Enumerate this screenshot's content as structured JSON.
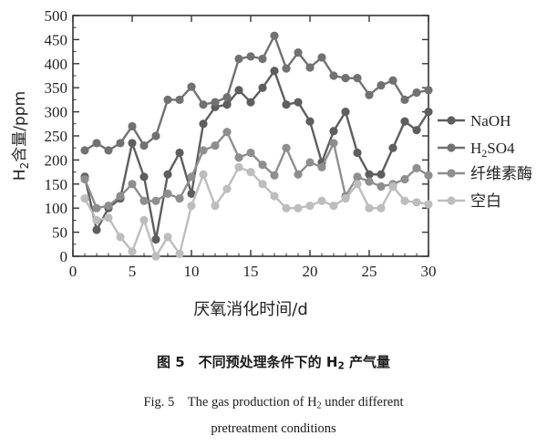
{
  "chart_data": {
    "type": "line",
    "title": "",
    "xlabel": "厌氧消化时间/d",
    "ylabel": "H2含量/ppm",
    "xlim": [
      0,
      30
    ],
    "ylim": [
      0,
      500
    ],
    "xticks": [
      0,
      5,
      10,
      15,
      20,
      25,
      30
    ],
    "yticks": [
      0,
      50,
      100,
      150,
      200,
      250,
      300,
      350,
      400,
      450,
      500
    ],
    "grid": false,
    "legend_position": "right",
    "x": [
      1,
      2,
      3,
      4,
      5,
      6,
      7,
      8,
      9,
      10,
      11,
      12,
      13,
      14,
      15,
      16,
      17,
      18,
      19,
      20,
      21,
      22,
      23,
      24,
      25,
      26,
      27,
      28,
      29,
      30
    ],
    "series": [
      {
        "name": "NaOH",
        "color": "#5e5e5e",
        "values": [
          165,
          55,
          100,
          120,
          235,
          165,
          35,
          170,
          215,
          130,
          275,
          310,
          315,
          345,
          320,
          350,
          385,
          315,
          320,
          280,
          195,
          260,
          300,
          215,
          170,
          170,
          225,
          280,
          262,
          300
        ]
      },
      {
        "name": "H2SO4",
        "color": "#717171",
        "values": [
          220,
          235,
          220,
          235,
          270,
          230,
          250,
          325,
          325,
          352,
          315,
          320,
          330,
          410,
          415,
          410,
          458,
          390,
          423,
          392,
          413,
          375,
          370,
          370,
          335,
          355,
          365,
          325,
          340,
          345
        ]
      },
      {
        "name": "纤维素酶",
        "color": "#8e8e8e",
        "values": [
          160,
          100,
          105,
          125,
          150,
          115,
          115,
          130,
          120,
          165,
          220,
          230,
          258,
          205,
          215,
          190,
          168,
          225,
          170,
          195,
          185,
          235,
          125,
          165,
          155,
          145,
          150,
          160,
          183,
          168
        ]
      },
      {
        "name": "空白",
        "color": "#bdbdbd",
        "values": [
          120,
          75,
          80,
          40,
          10,
          75,
          0,
          40,
          5,
          105,
          170,
          105,
          140,
          185,
          175,
          150,
          125,
          100,
          100,
          105,
          115,
          105,
          120,
          150,
          100,
          100,
          145,
          115,
          112,
          108
        ]
      }
    ]
  },
  "legend_labels": [
    "NaOH",
    "H2SO4",
    "纤维素酶",
    "空白"
  ],
  "caption": {
    "cn_prefix": "图 5　不同预处理条件下的 H",
    "cn_sub": "2",
    "cn_suffix": " 产气量",
    "en_line1_prefix": "Fig. 5　The gas production of H",
    "en_line1_sub": "2",
    "en_line1_suffix": " under different",
    "en_line2": "pretreatment conditions"
  }
}
